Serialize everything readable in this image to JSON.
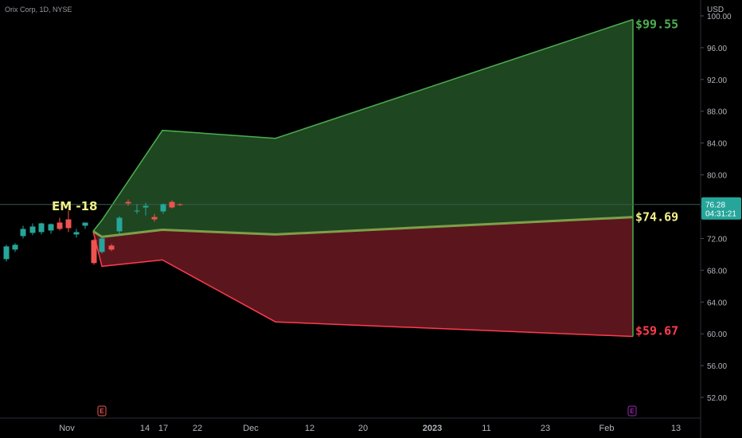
{
  "symbol_label": "Orix Corp, 1D, NYSE",
  "currency": "USD",
  "em_label": "EM -18",
  "colors": {
    "background": "#000000",
    "up": "#26a69a",
    "down": "#ef5350",
    "upper_fill": "#1e4620",
    "lower_fill": "#5b161d",
    "upper_line": "#4caf50",
    "lower_line": "#ff3b4e",
    "mid_line": "#7d9f4a",
    "price_badge": "#26a69a",
    "earnings_red": "#ef5350",
    "earnings_purple": "#9c27b0",
    "label_green": "#4caf50",
    "label_yellow": "#f2f08a",
    "label_red": "#ff3b4e"
  },
  "current_price": {
    "value": "76.28",
    "countdown": "04:31:21",
    "level": 76.28
  },
  "chart_data": {
    "type": "candlestick",
    "ylim": [
      49.4,
      102.0
    ],
    "y_ticks": [
      "100.00",
      "96.00",
      "92.00",
      "88.00",
      "84.00",
      "80.00",
      "76.00",
      "72.00",
      "68.00",
      "64.00",
      "60.00",
      "56.00",
      "52.00"
    ],
    "x_ticks": [
      "Nov",
      "14",
      "17",
      "22",
      "Dec",
      "12",
      "20",
      "2023",
      "11",
      "23",
      "Feb",
      "13"
    ],
    "candles": [
      {
        "o": 69.4,
        "h": 71.2,
        "l": 69.1,
        "c": 71.0
      },
      {
        "o": 70.6,
        "h": 71.4,
        "l": 70.3,
        "c": 71.2
      },
      {
        "o": 72.3,
        "h": 73.6,
        "l": 72.0,
        "c": 73.2
      },
      {
        "o": 72.7,
        "h": 73.9,
        "l": 72.4,
        "c": 73.5
      },
      {
        "o": 72.8,
        "h": 74.0,
        "l": 72.5,
        "c": 73.9
      },
      {
        "o": 73.0,
        "h": 73.9,
        "l": 72.6,
        "c": 73.8
      },
      {
        "o": 74.0,
        "h": 74.6,
        "l": 73.0,
        "c": 73.2
      },
      {
        "o": 74.4,
        "h": 75.5,
        "l": 72.8,
        "c": 73.3
      },
      {
        "o": 72.5,
        "h": 73.2,
        "l": 72.1,
        "c": 72.8
      },
      {
        "o": 73.6,
        "h": 74.0,
        "l": 73.2,
        "c": 74.0
      },
      {
        "o": 71.8,
        "h": 71.9,
        "l": 68.7,
        "c": 68.9
      },
      {
        "o": 70.3,
        "h": 72.2,
        "l": 70.1,
        "c": 72.0
      },
      {
        "o": 71.1,
        "h": 71.3,
        "l": 70.4,
        "c": 70.6
      },
      {
        "o": 72.9,
        "h": 74.8,
        "l": 72.6,
        "c": 74.6
      },
      {
        "o": 76.6,
        "h": 76.9,
        "l": 76.1,
        "c": 76.4
      },
      {
        "o": 75.4,
        "h": 76.3,
        "l": 75.1,
        "c": 75.5
      },
      {
        "o": 75.9,
        "h": 76.5,
        "l": 74.9,
        "c": 76.1
      },
      {
        "o": 74.7,
        "h": 75.1,
        "l": 74.1,
        "c": 74.4
      },
      {
        "o": 75.4,
        "h": 76.4,
        "l": 75.1,
        "c": 76.3
      },
      {
        "o": 76.6,
        "h": 76.8,
        "l": 75.8,
        "c": 75.9
      },
      {
        "o": 76.3,
        "h": 76.4,
        "l": 76.1,
        "c": 76.2
      }
    ],
    "expected_move": {
      "upper": [
        72.9,
        74.3,
        85.6,
        84.6,
        99.55
      ],
      "mid": [
        72.9,
        72.2,
        73.1,
        72.5,
        74.69
      ],
      "lower": [
        72.9,
        68.5,
        69.3,
        61.5,
        59.67
      ],
      "start_label": "EM -18",
      "end_labels": {
        "upper": "$99.55",
        "mid": "$74.69",
        "lower": "$59.67"
      }
    },
    "earnings_markers": [
      {
        "label": "E",
        "type": "past"
      },
      {
        "label": "E",
        "type": "upcoming"
      }
    ]
  }
}
